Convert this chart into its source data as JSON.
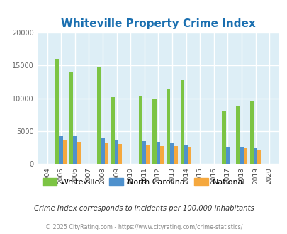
{
  "title": "Whiteville Property Crime Index",
  "years": [
    2004,
    2005,
    2006,
    2007,
    2008,
    2009,
    2010,
    2011,
    2012,
    2013,
    2014,
    2015,
    2016,
    2017,
    2018,
    2019,
    2020
  ],
  "whiteville": [
    0,
    16000,
    14000,
    0,
    14750,
    10200,
    0,
    10250,
    9950,
    11500,
    12750,
    0,
    0,
    8000,
    8750,
    9500,
    0
  ],
  "nc": [
    0,
    4200,
    4200,
    0,
    4050,
    3600,
    0,
    3500,
    3350,
    3100,
    2850,
    0,
    0,
    2600,
    2500,
    2350,
    0
  ],
  "national": [
    0,
    3600,
    3350,
    0,
    3150,
    3050,
    0,
    2850,
    2750,
    2750,
    2600,
    0,
    0,
    0,
    2350,
    2200,
    0
  ],
  "bar_width": 0.27,
  "ylim": [
    0,
    20000
  ],
  "yticks": [
    0,
    5000,
    10000,
    15000,
    20000
  ],
  "color_whiteville": "#7cc444",
  "color_nc": "#4f91cd",
  "color_national": "#f5a83e",
  "bg_color": "#ddeef6",
  "fig_bg_color": "#ffffff",
  "grid_color": "#ffffff",
  "title_color": "#1a6fb0",
  "legend_labels": [
    "Whiteville",
    "North Carolina",
    "National"
  ],
  "note": "Crime Index corresponds to incidents per 100,000 inhabitants",
  "copyright": "© 2025 CityRating.com - https://www.cityrating.com/crime-statistics/"
}
